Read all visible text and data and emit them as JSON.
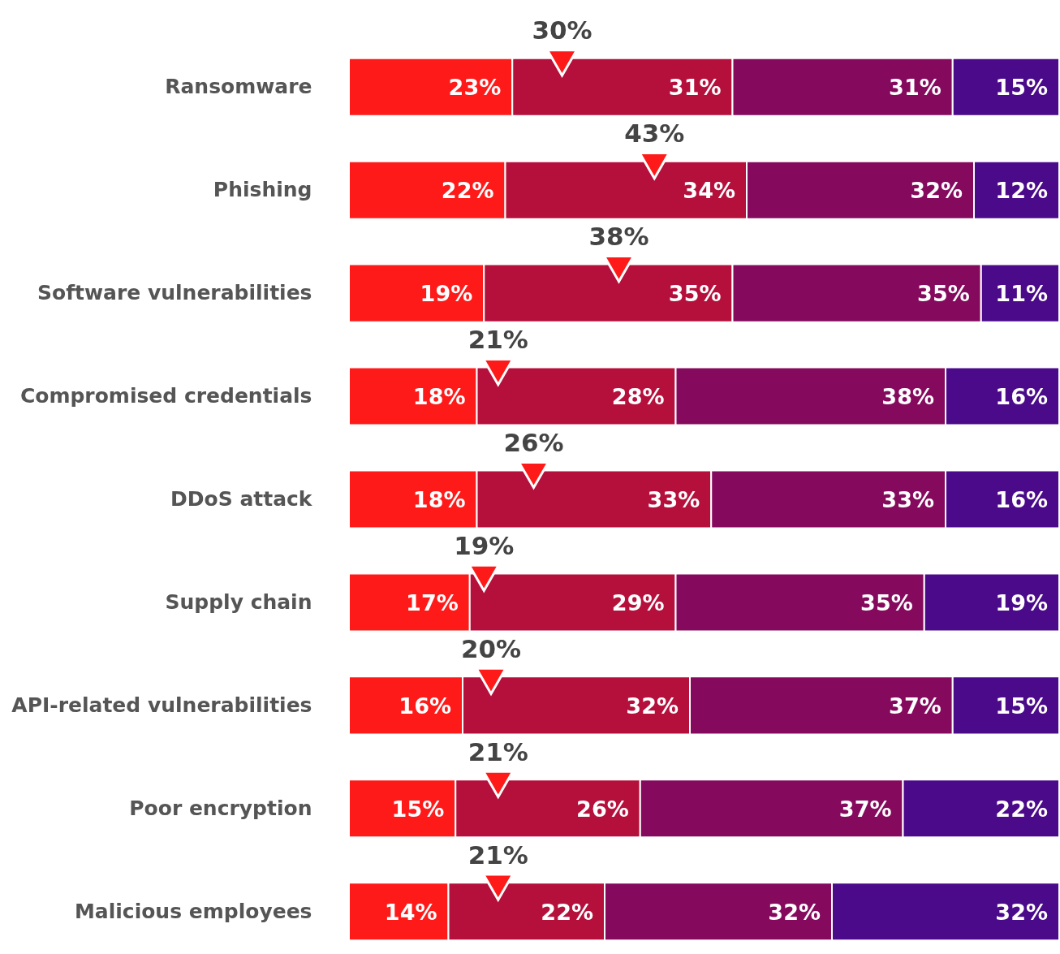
{
  "chart_data": {
    "type": "bar",
    "orientation": "horizontal",
    "stacked": true,
    "tick_labels": "y",
    "categories": [
      "Ransomware",
      "Phishing",
      "Software vulnerabilities",
      "Compromised credentials",
      "DDoS attack",
      "Supply chain",
      "API-related vulnerabilities",
      "Poor encryption",
      "Malicious employees"
    ],
    "series": [
      {
        "color": "#ff1a1a",
        "values": [
          23,
          22,
          19,
          18,
          18,
          17,
          16,
          15,
          14
        ],
        "value_labels": [
          "23%",
          "22%",
          "19%",
          "18%",
          "18%",
          "17%",
          "16%",
          "15%",
          "14%"
        ]
      },
      {
        "color": "#b5103c",
        "values": [
          31,
          34,
          35,
          28,
          33,
          29,
          32,
          26,
          22
        ],
        "value_labels": [
          "31%",
          "34%",
          "35%",
          "28%",
          "33%",
          "29%",
          "32%",
          "26%",
          "22%"
        ]
      },
      {
        "color": "#850a5e",
        "values": [
          31,
          32,
          35,
          38,
          33,
          35,
          37,
          37,
          32
        ],
        "value_labels": [
          "31%",
          "32%",
          "35%",
          "38%",
          "33%",
          "35%",
          "37%",
          "37%",
          "32%"
        ]
      },
      {
        "color": "#4a0a8a",
        "values": [
          15,
          12,
          11,
          16,
          16,
          19,
          15,
          22,
          32
        ],
        "value_labels": [
          "15%",
          "12%",
          "11%",
          "16%",
          "16%",
          "19%",
          "15%",
          "22%",
          "32%"
        ]
      },
      {
        "type": "scatter",
        "marker": "triangle",
        "color": "#ff1a1a",
        "values": [
          30,
          43,
          38,
          21,
          26,
          19,
          20,
          21,
          21
        ],
        "value_labels": [
          "30%",
          "43%",
          "38%",
          "21%",
          "26%",
          "19%",
          "20%",
          "21%",
          "21%"
        ]
      }
    ]
  }
}
